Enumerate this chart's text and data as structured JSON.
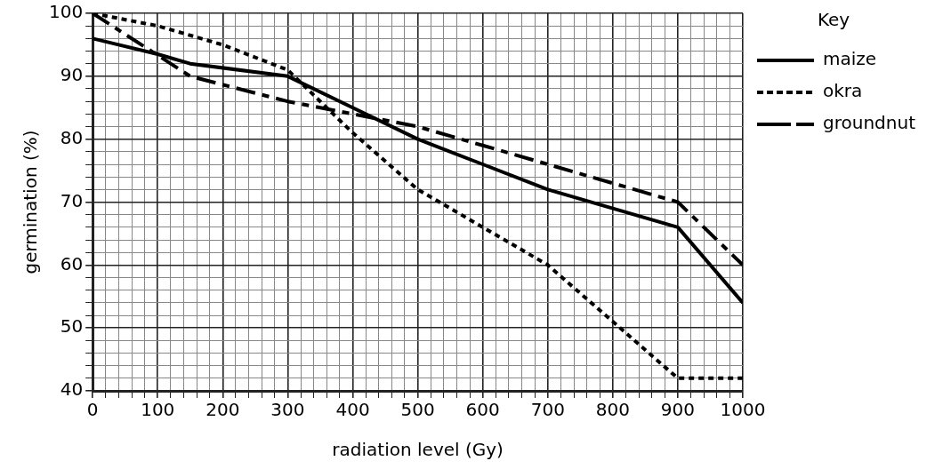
{
  "chart_data": {
    "type": "line",
    "xlabel": "radiation level (Gy)",
    "ylabel": "germination (%)",
    "legend_title": "Key",
    "legend": "top right",
    "grid": true,
    "marker": "none",
    "xlim": [
      0,
      1000
    ],
    "ylim": [
      40,
      100
    ],
    "xticks": [
      0,
      {
        "value": 20,
        "label": null
      },
      {
        "value": 40,
        "label": null
      },
      {
        "value": 60,
        "label": null
      },
      {
        "value": 80,
        "label": null
      },
      100,
      {
        "value": 120,
        "label": null
      },
      {
        "value": 140,
        "label": null
      },
      {
        "value": 160,
        "label": null
      },
      {
        "value": 180,
        "label": null
      },
      200,
      {
        "value": 220,
        "label": null
      },
      {
        "value": 240,
        "label": null
      },
      {
        "value": 260,
        "label": null
      },
      {
        "value": 280,
        "label": null
      },
      300,
      {
        "value": 320,
        "label": null
      },
      {
        "value": 340,
        "label": null
      },
      {
        "value": 360,
        "label": null
      },
      {
        "value": 380,
        "label": null
      },
      400,
      {
        "value": 420,
        "label": null
      },
      {
        "value": 440,
        "label": null
      },
      {
        "value": 460,
        "label": null
      },
      {
        "value": 480,
        "label": null
      },
      500,
      {
        "value": 520,
        "label": null
      },
      {
        "value": 540,
        "label": null
      },
      {
        "value": 560,
        "label": null
      },
      {
        "value": 580,
        "label": null
      },
      600,
      {
        "value": 620,
        "label": null
      },
      {
        "value": 640,
        "label": null
      },
      {
        "value": 660,
        "label": null
      },
      {
        "value": 680,
        "label": null
      },
      700,
      {
        "value": 720,
        "label": null
      },
      {
        "value": 740,
        "label": null
      },
      {
        "value": 760,
        "label": null
      },
      {
        "value": 780,
        "label": null
      },
      800,
      {
        "value": 820,
        "label": null
      },
      {
        "value": 840,
        "label": null
      },
      {
        "value": 860,
        "label": null
      },
      {
        "value": 880,
        "label": null
      },
      900,
      {
        "value": 920,
        "label": null
      },
      {
        "value": 940,
        "label": null
      },
      {
        "value": 960,
        "label": null
      },
      {
        "value": 980,
        "label": null
      },
      1000
    ],
    "yticks": [
      40,
      {
        "value": 42,
        "label": null
      },
      {
        "value": 44,
        "label": null
      },
      {
        "value": 46,
        "label": null
      },
      {
        "value": 48,
        "label": null
      },
      50,
      {
        "value": 52,
        "label": null
      },
      {
        "value": 54,
        "label": null
      },
      {
        "value": 56,
        "label": null
      },
      {
        "value": 58,
        "label": null
      },
      60,
      {
        "value": 62,
        "label": null
      },
      {
        "value": 64,
        "label": null
      },
      {
        "value": 66,
        "label": null
      },
      {
        "value": 68,
        "label": null
      },
      70,
      {
        "value": 72,
        "label": null
      },
      {
        "value": 74,
        "label": null
      },
      {
        "value": 76,
        "label": null
      },
      {
        "value": 78,
        "label": null
      },
      80,
      {
        "value": 82,
        "label": null
      },
      {
        "value": 84,
        "label": null
      },
      {
        "value": 86,
        "label": null
      },
      {
        "value": 88,
        "label": null
      },
      90,
      {
        "value": 92,
        "label": null
      },
      {
        "value": 94,
        "label": null
      },
      {
        "value": 96,
        "label": null
      },
      {
        "value": 98,
        "label": null
      },
      100
    ],
    "series": [
      {
        "name": "maize",
        "color": "#000000",
        "line_style": "solid",
        "x": [
          0,
          100,
          150,
          300,
          400,
          500,
          600,
          700,
          800,
          900,
          1000
        ],
        "values": [
          96,
          93.5,
          92,
          90,
          85,
          80,
          76,
          72,
          69,
          66,
          54
        ]
      },
      {
        "name": "okra",
        "color": "#000000",
        "line_style": "dotted",
        "x": [
          0,
          100,
          200,
          300,
          400,
          500,
          600,
          700,
          800,
          900,
          1000
        ],
        "values": [
          100,
          98,
          95,
          91,
          81,
          72,
          66,
          60,
          51,
          42,
          42
        ]
      },
      {
        "name": "groundnut",
        "color": "#000000",
        "line_style": "dashed",
        "x": [
          0,
          150,
          300,
          400,
          500,
          600,
          700,
          800,
          900,
          1000
        ],
        "values": [
          100,
          90,
          86,
          84,
          82,
          79,
          76,
          73,
          70,
          60
        ]
      }
    ]
  }
}
